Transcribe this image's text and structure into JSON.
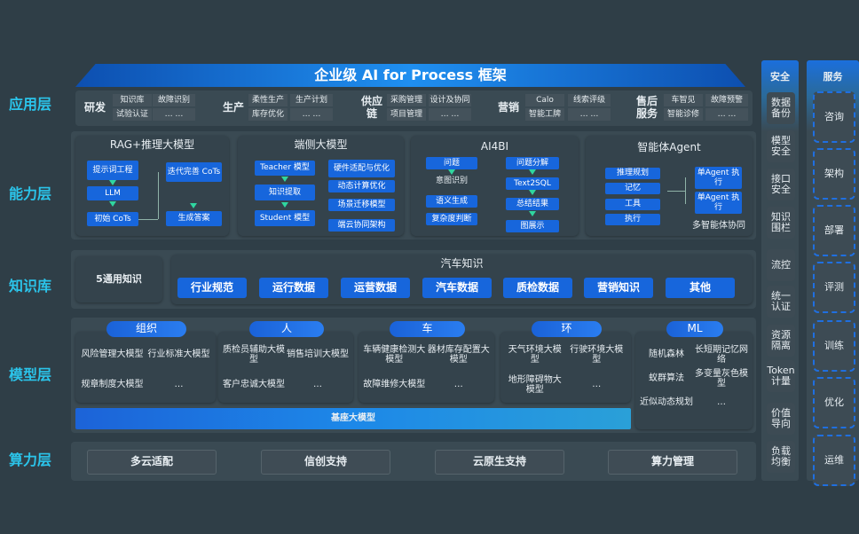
{
  "title": "企业级 AI for Process 框架",
  "layers": [
    "应用层",
    "能力层",
    "知识库",
    "模型层",
    "算力层"
  ],
  "app_layer": {
    "groups": [
      {
        "name": "研发",
        "items": [
          "知识库",
          "故障识别",
          "试验认证",
          "… …"
        ]
      },
      {
        "name": "生产",
        "items": [
          "柔性生产",
          "生产计划",
          "库存优化",
          "… …"
        ]
      },
      {
        "name": "供应链",
        "items": [
          "采购管理",
          "设计及协同",
          "项目管理",
          "… …"
        ]
      },
      {
        "name": "营销",
        "items": [
          "Calo",
          "线索评级",
          "智能工牌",
          "… …"
        ]
      },
      {
        "name": "售后服务",
        "items": [
          "车智见",
          "故障预警",
          "智能诊修",
          "… …"
        ]
      }
    ]
  },
  "capability": {
    "rag": {
      "title": "RAG+推理大模型",
      "boxes": [
        "提示词工程",
        "LLM",
        "初始 CoTs",
        "迭代完善 CoTs",
        "生成答案"
      ]
    },
    "edge": {
      "title": "端侧大模型",
      "boxes": [
        "Teacher 模型",
        "知识提取",
        "Student 模型",
        "硬件适配与优化",
        "动态计算优化",
        "场景迁移模型",
        "端云协同架构"
      ]
    },
    "ai4bi": {
      "title": "AI4BI",
      "boxes": [
        "问题",
        "意图识别",
        "语义生成",
        "复杂度判断",
        "问题分解",
        "Text2SQL",
        "总结结果",
        "图展示"
      ]
    },
    "agent": {
      "title": "智能体Agent",
      "boxes": [
        "推理规划",
        "记忆",
        "工具",
        "执行",
        "单Agent 执行",
        "单Agent 执行"
      ],
      "footer": "多智能体协同"
    }
  },
  "knowledge": {
    "general": "5通用知识",
    "auto_title": "汽车知识",
    "items": [
      "行业规范",
      "运行数据",
      "运营数据",
      "汽车数据",
      "质检数据",
      "营销知识",
      "其他"
    ]
  },
  "models": {
    "groups": [
      {
        "name": "组织",
        "items": [
          "风险管理大模型",
          "行业标准大模型",
          "规章制度大模型",
          "…"
        ]
      },
      {
        "name": "人",
        "items": [
          "质检员辅助大模型",
          "销售培训大模型",
          "客户忠诚大模型",
          "…"
        ]
      },
      {
        "name": "车",
        "items": [
          "车辆健康检测大模型",
          "器材库存配置大模型",
          "故障维修大模型",
          "…"
        ]
      },
      {
        "name": "环",
        "items": [
          "天气环境大模型",
          "行驶环境大模型",
          "地形障碍物大模型",
          "…"
        ]
      },
      {
        "name": "ML",
        "items": [
          "随机森林",
          "长短期记忆网络",
          "蚁群算法",
          "多变量灰色模型",
          "近似动态规划",
          "…"
        ]
      }
    ],
    "base": "基座大模型"
  },
  "compute": [
    "多云适配",
    "信创支持",
    "云原生支持",
    "算力管理"
  ],
  "security": {
    "title": "安全",
    "items": [
      "数据备份",
      "模型安全",
      "接口安全",
      "知识围栏",
      "流控",
      "统一认证",
      "资源隔离",
      "Token计量",
      "价值导向",
      "负载均衡"
    ]
  },
  "services": {
    "title": "服务",
    "items": [
      "咨询",
      "架构",
      "部署",
      "评测",
      "训练",
      "优化",
      "运维"
    ]
  },
  "colors": {
    "accent": "#2bc4ea",
    "box_blue": "#1766dc",
    "arrow": "#2fd6a0",
    "background": "#2f3e47"
  }
}
